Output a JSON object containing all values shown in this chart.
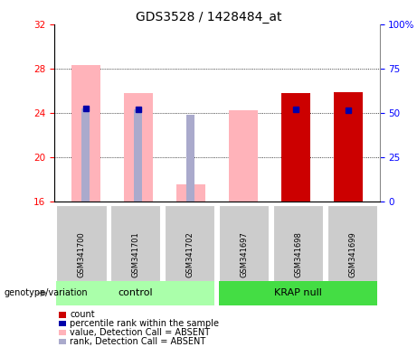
{
  "title": "GDS3528 / 1428484_at",
  "samples": [
    "GSM341700",
    "GSM341701",
    "GSM341702",
    "GSM341697",
    "GSM341698",
    "GSM341699"
  ],
  "ylim_left": [
    16,
    32
  ],
  "ylim_right": [
    0,
    100
  ],
  "yticks_left": [
    16,
    20,
    24,
    28,
    32
  ],
  "yticks_right": [
    0,
    25,
    50,
    75,
    100
  ],
  "yticklabels_right": [
    "0",
    "25",
    "50",
    "75",
    "100%"
  ],
  "baseline": 16,
  "pink_bar_tops": [
    28.3,
    25.8,
    17.5,
    24.2,
    null,
    null
  ],
  "light_blue_bar_tops": [
    24.4,
    24.3,
    23.8,
    null,
    null,
    null
  ],
  "red_bar_tops": [
    null,
    null,
    null,
    null,
    25.8,
    25.9
  ],
  "blue_square_y": [
    24.4,
    24.3,
    null,
    null,
    24.3,
    24.2
  ],
  "colors": {
    "pink": "#FFB3BA",
    "light_blue": "#AAAACC",
    "red": "#CC0000",
    "blue": "#0000AA",
    "control_bg": "#AAFFAA",
    "krap_bg": "#44DD44",
    "gray_box": "#CCCCCC",
    "gray_box_border": "#AAAAAA"
  },
  "legend_items": [
    {
      "label": "count",
      "color": "#CC0000"
    },
    {
      "label": "percentile rank within the sample",
      "color": "#0000AA"
    },
    {
      "label": "value, Detection Call = ABSENT",
      "color": "#FFB3BA"
    },
    {
      "label": "rank, Detection Call = ABSENT",
      "color": "#AAAACC"
    }
  ],
  "group_labels": [
    "control",
    "KRAP null"
  ],
  "group_ranges": [
    [
      0,
      2
    ],
    [
      3,
      5
    ]
  ]
}
